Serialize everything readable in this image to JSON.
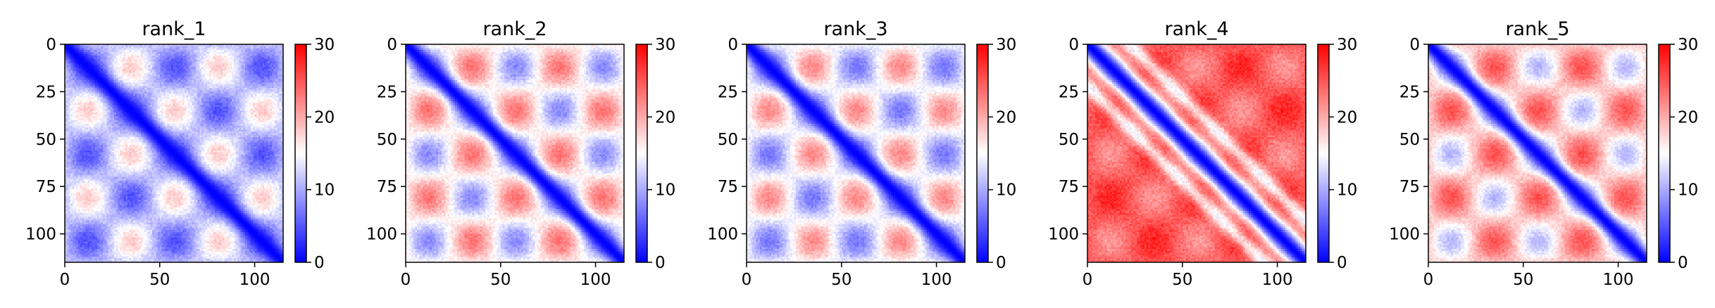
{
  "chart_data": [
    {
      "type": "heatmap",
      "title": "rank_1",
      "xlabel": "",
      "ylabel": "",
      "n": 115,
      "x_ticks": [
        0,
        50,
        100
      ],
      "y_ticks": [
        0,
        25,
        50,
        75,
        100
      ],
      "colorbar": {
        "min": 0,
        "max": 30,
        "ticks": [
          0,
          10,
          20,
          30
        ],
        "colormap": "bwr"
      },
      "pattern": {
        "diag_width": 5,
        "off_diag_level": 0.38,
        "block_period": 23,
        "block_amplitude": 0.22,
        "noise": 0.06
      }
    },
    {
      "type": "heatmap",
      "title": "rank_2",
      "xlabel": "",
      "ylabel": "",
      "n": 115,
      "x_ticks": [
        0,
        50,
        100
      ],
      "y_ticks": [
        0,
        25,
        50,
        75,
        100
      ],
      "colorbar": {
        "min": 0,
        "max": 30,
        "ticks": [
          0,
          10,
          20,
          30
        ],
        "colormap": "bwr"
      },
      "pattern": {
        "diag_width": 5,
        "off_diag_level": 0.52,
        "block_period": 23,
        "block_amplitude": 0.25,
        "noise": 0.06
      }
    },
    {
      "type": "heatmap",
      "title": "rank_3",
      "xlabel": "",
      "ylabel": "",
      "n": 115,
      "x_ticks": [
        0,
        50,
        100
      ],
      "y_ticks": [
        0,
        25,
        50,
        75,
        100
      ],
      "colorbar": {
        "min": 0,
        "max": 30,
        "ticks": [
          0,
          10,
          20,
          30
        ],
        "colormap": "bwr"
      },
      "pattern": {
        "diag_width": 5,
        "off_diag_level": 0.48,
        "block_period": 23,
        "block_amplitude": 0.25,
        "noise": 0.06
      }
    },
    {
      "type": "heatmap",
      "title": "rank_4",
      "xlabel": "",
      "ylabel": "",
      "n": 115,
      "x_ticks": [
        0,
        50,
        100
      ],
      "y_ticks": [
        0,
        25,
        50,
        75,
        100
      ],
      "colorbar": {
        "min": 0,
        "max": 30,
        "ticks": [
          0,
          10,
          20,
          30
        ],
        "colormap": "bwr"
      },
      "pattern": {
        "diag_width": 6,
        "off_diag_level": 0.82,
        "block_period": 23,
        "block_amplitude": 0.12,
        "noise": 0.07,
        "stripe_offset": 22
      }
    },
    {
      "type": "heatmap",
      "title": "rank_5",
      "xlabel": "",
      "ylabel": "",
      "n": 115,
      "x_ticks": [
        0,
        50,
        100
      ],
      "y_ticks": [
        0,
        25,
        50,
        75,
        100
      ],
      "colorbar": {
        "min": 0,
        "max": 30,
        "ticks": [
          0,
          10,
          20,
          30
        ],
        "colormap": "bwr"
      },
      "pattern": {
        "diag_width": 5,
        "off_diag_level": 0.6,
        "block_period": 23,
        "block_amplitude": 0.24,
        "noise": 0.06
      }
    }
  ]
}
